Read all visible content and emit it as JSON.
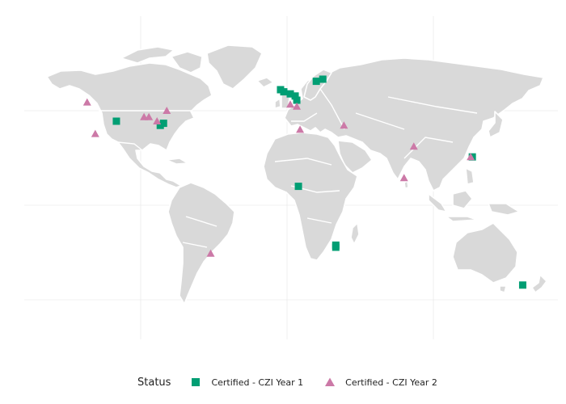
{
  "legend": {
    "title": "Status",
    "items": [
      {
        "label": "Certified - CZI Year 1",
        "shape": "square",
        "color": "#009E73"
      },
      {
        "label": "Certified - CZI Year 2",
        "shape": "triangle",
        "color": "#CC79A7"
      }
    ]
  },
  "chart_data": {
    "type": "scatter",
    "grid": true,
    "legend_position": "bottom",
    "series": [
      {
        "name": "Certified - CZI Year 1",
        "color": "#009E73",
        "shape": "square",
        "points": [
          {
            "lon": -105,
            "lat": 40
          },
          {
            "lon": -76,
            "lat": 39
          },
          {
            "lon": -78,
            "lat": 38
          },
          {
            "lon": -4,
            "lat": 55
          },
          {
            "lon": -2,
            "lat": 54
          },
          {
            "lon": 2,
            "lat": 53
          },
          {
            "lon": 5,
            "lat": 52
          },
          {
            "lon": 6,
            "lat": 50
          },
          {
            "lon": 18,
            "lat": 59
          },
          {
            "lon": 22,
            "lat": 60
          },
          {
            "lon": 7,
            "lat": 9
          },
          {
            "lon": 30,
            "lat": -19
          },
          {
            "lon": 30,
            "lat": -20
          },
          {
            "lon": 114,
            "lat": 23
          },
          {
            "lon": 145,
            "lat": -38
          }
        ]
      },
      {
        "name": "Certified - CZI Year 2",
        "color": "#CC79A7",
        "shape": "triangle",
        "points": [
          {
            "lon": -123,
            "lat": 49
          },
          {
            "lon": -118,
            "lat": 34
          },
          {
            "lon": -88,
            "lat": 42
          },
          {
            "lon": -85,
            "lat": 42
          },
          {
            "lon": -80,
            "lat": 40
          },
          {
            "lon": -74,
            "lat": 45
          },
          {
            "lon": -47,
            "lat": -23
          },
          {
            "lon": 2,
            "lat": 48
          },
          {
            "lon": 6,
            "lat": 47
          },
          {
            "lon": 8,
            "lat": 36
          },
          {
            "lon": 35,
            "lat": 38
          },
          {
            "lon": 78,
            "lat": 28
          },
          {
            "lon": 72,
            "lat": 13
          },
          {
            "lon": 113,
            "lat": 23
          }
        ]
      }
    ]
  }
}
